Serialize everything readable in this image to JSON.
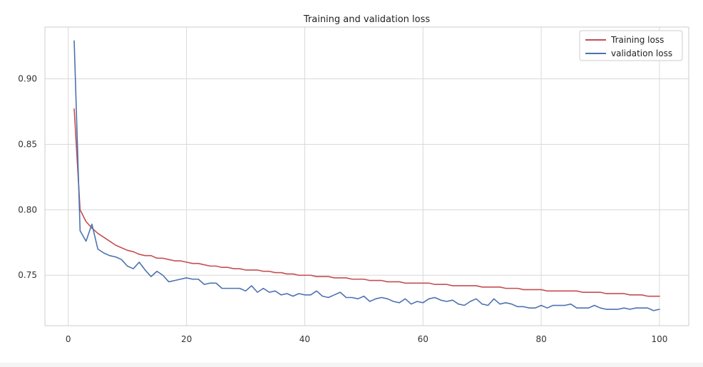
{
  "chart_data": {
    "type": "line",
    "title": "Training and validation loss",
    "xlabel": "",
    "ylabel": "",
    "xlim": [
      -3.95,
      104.95
    ],
    "ylim": [
      0.7115,
      0.9395
    ],
    "x_ticks": [
      0,
      20,
      40,
      60,
      80,
      100
    ],
    "x_tick_labels": [
      "0",
      "20",
      "40",
      "60",
      "80",
      "100"
    ],
    "y_ticks": [
      0.75,
      0.8,
      0.85,
      0.9
    ],
    "y_tick_labels": [
      "0.75",
      "0.80",
      "0.85",
      "0.90"
    ],
    "grid": true,
    "legend_position": "top-right",
    "x": [
      1,
      2,
      3,
      4,
      5,
      6,
      7,
      8,
      9,
      10,
      11,
      12,
      13,
      14,
      15,
      16,
      17,
      18,
      19,
      20,
      21,
      22,
      23,
      24,
      25,
      26,
      27,
      28,
      29,
      30,
      31,
      32,
      33,
      34,
      35,
      36,
      37,
      38,
      39,
      40,
      41,
      42,
      43,
      44,
      45,
      46,
      47,
      48,
      49,
      50,
      51,
      52,
      53,
      54,
      55,
      56,
      57,
      58,
      59,
      60,
      61,
      62,
      63,
      64,
      65,
      66,
      67,
      68,
      69,
      70,
      71,
      72,
      73,
      74,
      75,
      76,
      77,
      78,
      79,
      80,
      81,
      82,
      83,
      84,
      85,
      86,
      87,
      88,
      89,
      90,
      91,
      92,
      93,
      94,
      95,
      96,
      97,
      98,
      99,
      100
    ],
    "series": [
      {
        "name": "Training loss",
        "color": "#c44e52",
        "values": [
          0.877,
          0.8,
          0.791,
          0.786,
          0.782,
          0.779,
          0.776,
          0.773,
          0.771,
          0.769,
          0.768,
          0.766,
          0.765,
          0.765,
          0.763,
          0.763,
          0.762,
          0.761,
          0.761,
          0.76,
          0.759,
          0.759,
          0.758,
          0.757,
          0.757,
          0.756,
          0.756,
          0.755,
          0.755,
          0.754,
          0.754,
          0.754,
          0.753,
          0.753,
          0.752,
          0.752,
          0.751,
          0.751,
          0.75,
          0.75,
          0.75,
          0.749,
          0.749,
          0.749,
          0.748,
          0.748,
          0.748,
          0.747,
          0.747,
          0.747,
          0.746,
          0.746,
          0.746,
          0.745,
          0.745,
          0.745,
          0.744,
          0.744,
          0.744,
          0.744,
          0.744,
          0.743,
          0.743,
          0.743,
          0.742,
          0.742,
          0.742,
          0.742,
          0.742,
          0.741,
          0.741,
          0.741,
          0.741,
          0.74,
          0.74,
          0.74,
          0.739,
          0.739,
          0.739,
          0.739,
          0.738,
          0.738,
          0.738,
          0.738,
          0.738,
          0.738,
          0.737,
          0.737,
          0.737,
          0.737,
          0.736,
          0.736,
          0.736,
          0.736,
          0.735,
          0.735,
          0.735,
          0.734,
          0.734,
          0.734
        ]
      },
      {
        "name": "validation loss",
        "color": "#4c72b0",
        "values": [
          0.929,
          0.784,
          0.776,
          0.789,
          0.77,
          0.767,
          0.765,
          0.764,
          0.762,
          0.757,
          0.755,
          0.76,
          0.754,
          0.749,
          0.753,
          0.75,
          0.745,
          0.746,
          0.747,
          0.748,
          0.747,
          0.747,
          0.743,
          0.744,
          0.744,
          0.74,
          0.74,
          0.74,
          0.74,
          0.738,
          0.742,
          0.737,
          0.74,
          0.737,
          0.738,
          0.735,
          0.736,
          0.734,
          0.736,
          0.735,
          0.735,
          0.738,
          0.734,
          0.733,
          0.735,
          0.737,
          0.733,
          0.733,
          0.732,
          0.734,
          0.73,
          0.732,
          0.733,
          0.732,
          0.73,
          0.729,
          0.732,
          0.728,
          0.73,
          0.729,
          0.732,
          0.733,
          0.731,
          0.73,
          0.731,
          0.728,
          0.727,
          0.73,
          0.732,
          0.728,
          0.727,
          0.732,
          0.728,
          0.729,
          0.728,
          0.726,
          0.726,
          0.725,
          0.725,
          0.727,
          0.725,
          0.727,
          0.727,
          0.727,
          0.728,
          0.725,
          0.725,
          0.725,
          0.727,
          0.725,
          0.724,
          0.724,
          0.724,
          0.725,
          0.724,
          0.725,
          0.725,
          0.725,
          0.723,
          0.724
        ]
      }
    ]
  }
}
